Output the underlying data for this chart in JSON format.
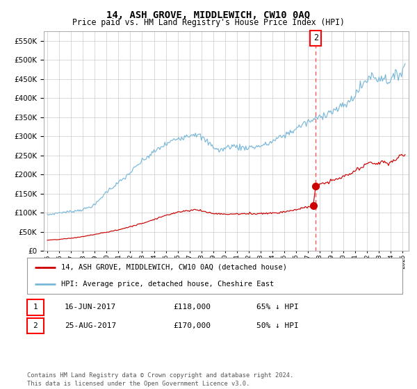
{
  "title": "14, ASH GROVE, MIDDLEWICH, CW10 0AQ",
  "subtitle": "Price paid vs. HM Land Registry's House Price Index (HPI)",
  "title_fontsize": 10,
  "subtitle_fontsize": 8.5,
  "hpi_color": "#7ab8d9",
  "price_color": "#cc0000",
  "dashed_line_color": "#ff5555",
  "background_color": "#ffffff",
  "grid_color": "#cccccc",
  "ylim": [
    0,
    575000
  ],
  "yticks": [
    0,
    50000,
    100000,
    150000,
    200000,
    250000,
    300000,
    350000,
    400000,
    450000,
    500000,
    550000
  ],
  "xlim_start": 1994.7,
  "xlim_end": 2025.5,
  "marker1_x": 2017.45,
  "marker1_y": 118000,
  "marker2_x": 2017.65,
  "marker2_y": 170000,
  "vline_x": 2017.65,
  "annotation2_label": "2",
  "legend1_label": "14, ASH GROVE, MIDDLEWICH, CW10 0AQ (detached house)",
  "legend2_label": "HPI: Average price, detached house, Cheshire East",
  "table_row1": [
    "1",
    "16-JUN-2017",
    "£118,000",
    "65% ↓ HPI"
  ],
  "table_row2": [
    "2",
    "25-AUG-2017",
    "£170,000",
    "50% ↓ HPI"
  ],
  "footer": "Contains HM Land Registry data © Crown copyright and database right 2024.\nThis data is licensed under the Open Government Licence v3.0.",
  "xtick_years": [
    1995,
    1996,
    1997,
    1998,
    1999,
    2000,
    2001,
    2002,
    2003,
    2004,
    2005,
    2006,
    2007,
    2008,
    2009,
    2010,
    2011,
    2012,
    2013,
    2014,
    2015,
    2016,
    2017,
    2018,
    2019,
    2020,
    2021,
    2022,
    2023,
    2024,
    2025
  ]
}
